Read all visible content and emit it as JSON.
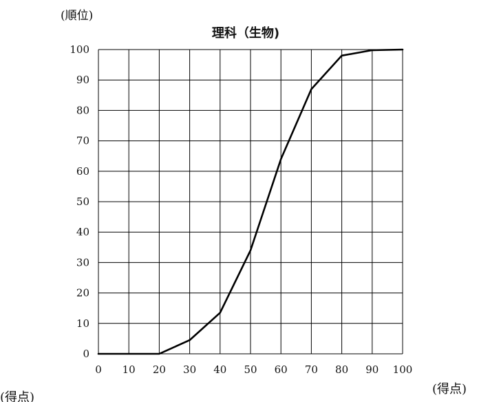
{
  "chart_data": {
    "type": "line",
    "title": "理科（生物)",
    "ylabel": "(順位)",
    "xlabel_left": "(得点)",
    "xlabel_right": "(得点)",
    "x": [
      0,
      10,
      20,
      30,
      40,
      50,
      60,
      70,
      80,
      90,
      100
    ],
    "series": [
      {
        "values": [
          0,
          0,
          0,
          4.5,
          13.5,
          34,
          64,
          87,
          98,
          99.8,
          100
        ]
      }
    ],
    "xticks": [
      0,
      10,
      20,
      30,
      40,
      50,
      60,
      70,
      80,
      90,
      100
    ],
    "yticks": [
      0,
      10,
      20,
      30,
      40,
      50,
      60,
      70,
      80,
      90,
      100
    ],
    "xlim": [
      0,
      100
    ],
    "ylim": [
      0,
      100
    ],
    "grid": true,
    "line_color": "#000000",
    "grid_color": "#000000"
  }
}
